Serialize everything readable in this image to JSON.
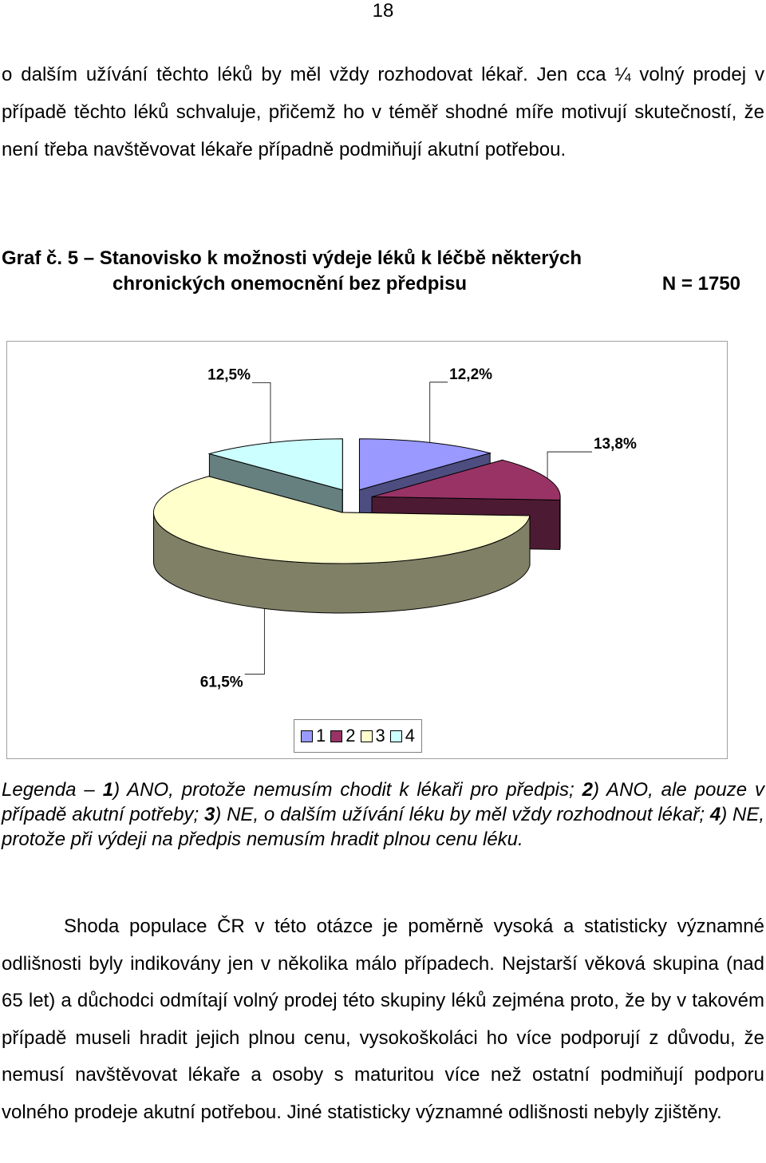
{
  "page_number": "18",
  "paragraph_top": "o dalším užívání těchto léků by měl vždy rozhodovat lékař.  Jen cca  ¼ volný prodej v případě těchto léků schvaluje, přičemž ho v téměř shodné míře motivují skutečností, že není třeba navštěvovat lékaře případně podmiňují akutní potřebou.",
  "caption": {
    "line1": "Graf č. 5 – Stanovisko k možnosti výdeje léků k léčbě některých",
    "line2": "chronických onemocnění bez předpisu",
    "n": "N = 1750"
  },
  "chart_data": {
    "type": "pie",
    "variant": "3d-exploded",
    "categories": [
      "1",
      "2",
      "3",
      "4"
    ],
    "values": [
      12.2,
      13.8,
      61.5,
      12.5
    ],
    "labels": [
      "12,2%",
      "13,8%",
      "61,5%",
      "12,5%"
    ],
    "colors": [
      "#9999ff",
      "#993366",
      "#ffffcc",
      "#ccffff"
    ],
    "legend_position": "bottom"
  },
  "legend_note": {
    "lead": "Legenda – ",
    "items": [
      {
        "num": "1",
        "text": ") ANO, protože nemusím chodit k lékaři pro předpis; "
      },
      {
        "num": "2",
        "text": ") ANO, ale pouze v případě akutní potřeby; "
      },
      {
        "num": "3",
        "text": ") NE, o dalším užívání léku by měl vždy rozhodnout lékař; "
      },
      {
        "num": "4",
        "text": ") NE, protože při výdeji na předpis nemusím hradit plnou cenu léku."
      }
    ]
  },
  "paragraph_bottom": "Shoda populace ČR v této otázce je poměrně vysoká a statisticky významné odlišnosti byly indikovány jen v několika málo případech. Nejstarší věková skupina (nad 65 let) a důchodci odmítají volný prodej této skupiny léků zejména proto, že by v takovém případě museli hradit jejich plnou cenu, vysokoškoláci ho více podporují z důvodu, že nemusí navštěvovat lékaře a osoby s maturitou více než ostatní podmiňují podporu volného prodeje akutní potřebou. Jiné statisticky významné odlišnosti nebyly zjištěny."
}
